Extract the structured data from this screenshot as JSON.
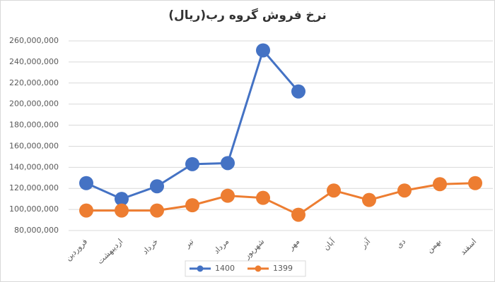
{
  "chart_data": {
    "type": "line",
    "title": "نرخ فروش گروه رب(ریال)",
    "categories": [
      "فروردین",
      "اردیبهشت",
      "خرداد",
      "تیر",
      "مرداد",
      "شهریور",
      "مهر",
      "آبان",
      "آذر",
      "دی",
      "بهمن",
      "اسفند"
    ],
    "series": [
      {
        "name": "1400",
        "color": "#4472c4",
        "values": [
          125000000,
          110000000,
          122000000,
          143000000,
          144000000,
          251000000,
          212000000,
          null,
          null,
          null,
          null,
          null
        ]
      },
      {
        "name": "1399",
        "color": "#ed7d31",
        "values": [
          99000000,
          99000000,
          99000000,
          104000000,
          113000000,
          111000000,
          95000000,
          118000000,
          109000000,
          118000000,
          124000000,
          125000000
        ]
      }
    ],
    "ylim": [
      80000000,
      260000000
    ],
    "yticks": [
      {
        "value": 80000000,
        "label": "80,000,000"
      },
      {
        "value": 100000000,
        "label": "100,000,000"
      },
      {
        "value": 120000000,
        "label": "120,000,000"
      },
      {
        "value": 140000000,
        "label": "140,000,000"
      },
      {
        "value": 160000000,
        "label": "160,000,000"
      },
      {
        "value": 180000000,
        "label": "180,000,000"
      },
      {
        "value": 200000000,
        "label": "200,000,000"
      },
      {
        "value": 220000000,
        "label": "220,000,000"
      },
      {
        "value": 240000000,
        "label": "240,000,000"
      },
      {
        "value": 260000000,
        "label": "260,000,000"
      }
    ],
    "grid": true,
    "legend": "bottom"
  }
}
